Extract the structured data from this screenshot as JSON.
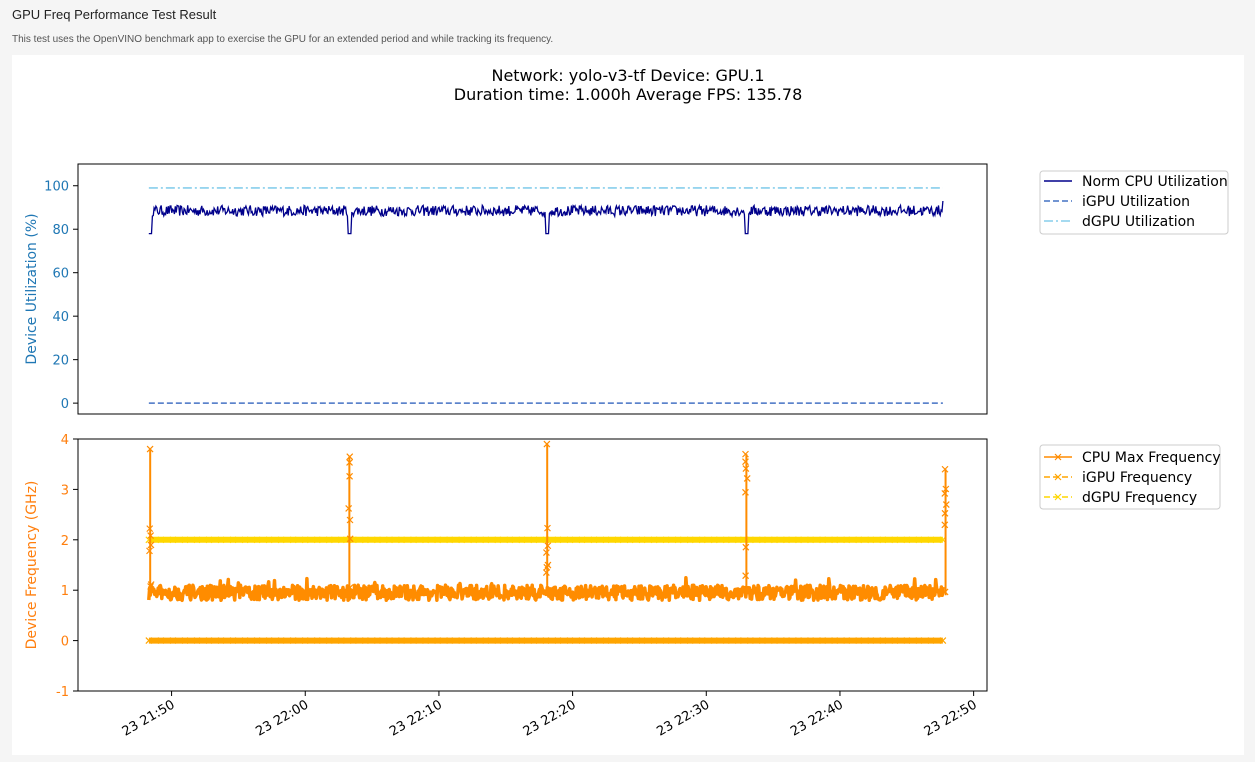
{
  "header": {
    "title": "GPU Freq Performance Test Result",
    "description": "This test uses the OpenVINO benchmark app to exercise the GPU for an extended period and while tracking its frequency."
  },
  "colors": {
    "norm_cpu": "#00008b",
    "igpu_util": "#4472c4",
    "dgpu_util": "#87ceeb",
    "cpu_freq": "#ff8c00",
    "igpu_freq": "#ffa500",
    "dgpu_freq": "#ffd700",
    "axis_top": "#1f77b4",
    "axis_bottom": "#ff7f0e"
  },
  "chart_data": [
    {
      "type": "line",
      "title": [
        "Network: yolo-v3-tf Device: GPU.1",
        "Duration time: 1.000h Average FPS: 135.78"
      ],
      "ylabel": "Device Utilization (%)",
      "ylim": [
        -5,
        110
      ],
      "yticks": [
        0,
        20,
        40,
        60,
        80,
        100
      ],
      "x_range_min": [
        -7,
        61
      ],
      "x_start_min": -1.7,
      "x_end_min": 57.7,
      "legend_position": "outside-right",
      "series": [
        {
          "name": "Norm CPU Utilization",
          "style": "solid",
          "baseline": 89,
          "noise": [
            86,
            91
          ],
          "dips_min": [
            -1.6,
            13.3,
            28.1,
            43.0,
            57.9
          ],
          "dip_value": 78,
          "end_value": 93
        },
        {
          "name": "iGPU Utilization",
          "style": "dashed",
          "value": 0
        },
        {
          "name": "dGPU Utilization",
          "style": "dashdot",
          "value": 99
        }
      ]
    },
    {
      "type": "line",
      "ylabel": "Device Frequency (GHz)",
      "ylim": [
        -1,
        4
      ],
      "yticks": [
        -1,
        0,
        1,
        2,
        3,
        4
      ],
      "xticks": [
        "23 21:50",
        "23 22:00",
        "23 22:10",
        "23 22:20",
        "23 22:30",
        "23 22:40",
        "23 22:50"
      ],
      "xtick_minutes": [
        0,
        10,
        20,
        30,
        40,
        50,
        60
      ],
      "legend_position": "outside-right",
      "series": [
        {
          "name": "CPU Max Frequency",
          "marker": "x",
          "baseline": 0.9,
          "noise": [
            0.8,
            1.1
          ],
          "spikes": [
            {
              "t": -1.6,
              "v": 3.8
            },
            {
              "t": 13.3,
              "v": 3.65
            },
            {
              "t": 28.1,
              "v": 3.9
            },
            {
              "t": 43.0,
              "v": 3.7
            },
            {
              "t": 57.9,
              "v": 3.4
            }
          ]
        },
        {
          "name": "iGPU Frequency",
          "marker": "x",
          "value": 0
        },
        {
          "name": "dGPU Frequency",
          "marker": "x",
          "value": 2.0
        }
      ]
    }
  ]
}
